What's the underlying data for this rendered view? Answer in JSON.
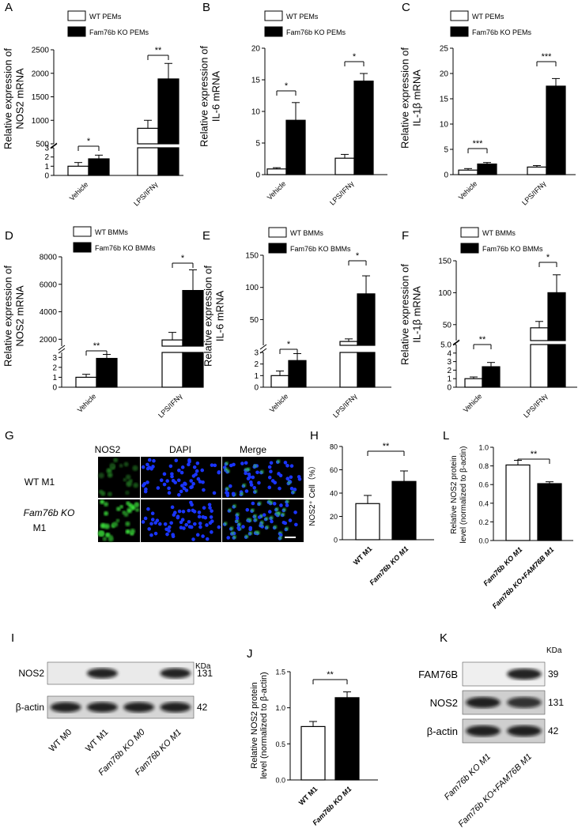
{
  "panel_letters": [
    "A",
    "B",
    "C",
    "D",
    "E",
    "F",
    "G",
    "H",
    "L",
    "I",
    "J",
    "K"
  ],
  "microscopy": {
    "columns": [
      "NOS2",
      "DAPI",
      "Merge"
    ],
    "row_labels": [
      "WT M1",
      "Fam76b KO",
      "M1"
    ]
  },
  "western_I": {
    "kda_label": "KDa",
    "rows": [
      {
        "name": "NOS2",
        "kda": "131",
        "bands": [
          0,
          1,
          0,
          1
        ]
      },
      {
        "name": "β-actin",
        "kda": "42",
        "bands": [
          1,
          1,
          1,
          1
        ]
      }
    ],
    "lanes": [
      "WT M0",
      "WT M1",
      "Fam76b KO M0",
      "Fam76b KO M1"
    ]
  },
  "western_K": {
    "kda_label": "KDa",
    "rows": [
      {
        "name": "FAM76B",
        "kda": "39",
        "bands": [
          0,
          1
        ]
      },
      {
        "name": "NOS2",
        "kda": "131",
        "bands": [
          1,
          0.8
        ]
      },
      {
        "name": "β-actin",
        "kda": "42",
        "bands": [
          1,
          1
        ]
      }
    ],
    "lanes": [
      "Fam76b KO M1",
      "Fam76b KO+FAM76B M1"
    ]
  },
  "chart_data": [
    {
      "panel": "A",
      "type": "bar",
      "legend": [
        "WT PEMs",
        "Fam76b KO PEMs"
      ],
      "ylabel_lines": [
        "Relative expression of",
        "NOS2 mRNA"
      ],
      "categories": [
        "Vehicle",
        "LPS/IFNγ"
      ],
      "series": [
        {
          "name": "WT PEMs",
          "values": [
            1.0,
            830
          ],
          "errors": [
            0.4,
            170
          ]
        },
        {
          "name": "Fam76b KO PEMs",
          "values": [
            1.8,
            1880
          ],
          "errors": [
            0.4,
            330
          ]
        }
      ],
      "y_break": {
        "lower": [
          0,
          3
        ],
        "upper": [
          500,
          2500
        ]
      },
      "yticks_lower": [
        "0",
        "1",
        "2",
        "3"
      ],
      "yticks_upper": [
        "500",
        "1000",
        "1500",
        "2000",
        "2500"
      ],
      "significance": [
        "*",
        "**"
      ]
    },
    {
      "panel": "B",
      "type": "bar",
      "legend": [
        "WT PEMs",
        "Fam76b KO  PEMs"
      ],
      "ylabel_lines": [
        "Relative expression of",
        "IL-6 mRNA"
      ],
      "categories": [
        "Vehicle",
        "LPS/IFNγ"
      ],
      "series": [
        {
          "name": "WT PEMs",
          "values": [
            0.9,
            2.6
          ],
          "errors": [
            0.2,
            0.6
          ]
        },
        {
          "name": "Fam76b KO  PEMs",
          "values": [
            8.6,
            14.8
          ],
          "errors": [
            2.8,
            1.2
          ]
        }
      ],
      "ylim": [
        0,
        20
      ],
      "yticks": [
        "0",
        "5",
        "10",
        "15",
        "20"
      ],
      "significance": [
        "*",
        "*"
      ]
    },
    {
      "panel": "C",
      "type": "bar",
      "legend": [
        "WT PEMs",
        "Fam76b KO PEMs"
      ],
      "ylabel_lines": [
        "Relative expression of",
        "IL-1β mRNA"
      ],
      "categories": [
        "Vehicle",
        "LPS/IFNγ"
      ],
      "series": [
        {
          "name": "WT PEMs",
          "values": [
            0.9,
            1.5
          ],
          "errors": [
            0.3,
            0.3
          ]
        },
        {
          "name": "Fam76b KO PEMs",
          "values": [
            2.1,
            17.5
          ],
          "errors": [
            0.3,
            1.5
          ]
        }
      ],
      "ylim": [
        0,
        25
      ],
      "yticks": [
        "0",
        "5",
        "10",
        "15",
        "20",
        "25"
      ],
      "significance": [
        "***",
        "***"
      ]
    },
    {
      "panel": "D",
      "type": "bar",
      "legend": [
        "WT BMMs",
        "Fam76b KO BMMs"
      ],
      "ylabel_lines": [
        "Relative expression of",
        "NOS2 mRNA"
      ],
      "categories": [
        "Vehicle",
        "LPS/IFNγ"
      ],
      "series": [
        {
          "name": "WT BMMs",
          "values": [
            1.0,
            1950
          ],
          "errors": [
            0.3,
            550
          ]
        },
        {
          "name": "Fam76b KO BMMs",
          "values": [
            2.9,
            5550
          ],
          "errors": [
            0.4,
            1500
          ]
        }
      ],
      "y_break": {
        "lower": [
          0,
          3.5
        ],
        "upper": [
          1500,
          8000
        ]
      },
      "yticks_lower": [
        "0",
        "1",
        "2",
        "3"
      ],
      "yticks_upper": [
        "2000",
        "4000",
        "6000",
        "8000"
      ],
      "significance": [
        "**",
        "*"
      ]
    },
    {
      "panel": "E",
      "type": "bar",
      "legend": [
        "WT BMMs",
        "Fam76b KO BMMs"
      ],
      "ylabel_lines": [
        "Relative expression of",
        "IL-6 mRNA"
      ],
      "categories": [
        "Vehicle",
        "LPS/IFNγ"
      ],
      "series": [
        {
          "name": "WT BMMs",
          "values": [
            1.0,
            16
          ],
          "errors": [
            0.4,
            4
          ]
        },
        {
          "name": "Fam76b KO BMMs",
          "values": [
            2.3,
            90
          ],
          "errors": [
            0.6,
            28
          ]
        }
      ],
      "y_break": {
        "lower": [
          0,
          3
        ],
        "upper": [
          10,
          150
        ]
      },
      "yticks_lower": [
        "0",
        "1",
        "2",
        "3"
      ],
      "yticks_upper": [
        "50",
        "100",
        "150"
      ],
      "significance": [
        "*",
        "*"
      ]
    },
    {
      "panel": "F",
      "type": "bar",
      "legend": [
        "WT BMMs",
        "Fam76b KO BMMs"
      ],
      "ylabel_lines": [
        "Relative expression of",
        "IL-1β mRNA"
      ],
      "categories": [
        "Vehicle",
        "LPS/IFNγ"
      ],
      "series": [
        {
          "name": "WT BMMs",
          "values": [
            1.0,
            45
          ],
          "errors": [
            0.2,
            10
          ]
        },
        {
          "name": "Fam76b KO BMMs",
          "values": [
            2.4,
            100
          ],
          "errors": [
            0.5,
            28
          ]
        }
      ],
      "y_break": {
        "lower": [
          0,
          5
        ],
        "upper": [
          25,
          150
        ]
      },
      "yticks_lower": [
        "0",
        "1",
        "2",
        "3",
        "4",
        "5.0"
      ],
      "yticks_upper": [
        "50",
        "100",
        "150"
      ],
      "significance": [
        "**",
        "*"
      ]
    },
    {
      "panel": "H",
      "type": "bar",
      "ylabel_lines": [
        "NOS2⁺ Cell（%）"
      ],
      "categories": [
        "WT M1",
        "Fam76b KO M1"
      ],
      "values": [
        31,
        50
      ],
      "errors": [
        7,
        9
      ],
      "ylim": [
        0,
        80
      ],
      "yticks": [
        "0",
        "20",
        "40",
        "60",
        "80"
      ],
      "significance": [
        "**"
      ]
    },
    {
      "panel": "L",
      "type": "bar",
      "ylabel_lines": [
        "Relative NOS2 protein",
        "level (normalized to β-actin)"
      ],
      "categories": [
        "Fam76b KO M1",
        "Fam76b KO+FAM76B M1"
      ],
      "values": [
        0.81,
        0.61
      ],
      "errors": [
        0.05,
        0.02
      ],
      "ylim": [
        0,
        1.0
      ],
      "yticks": [
        "0.0",
        "0.2",
        "0.4",
        "0.6",
        "0.8",
        "1.0"
      ],
      "significance": [
        "**"
      ]
    },
    {
      "panel": "J",
      "type": "bar",
      "ylabel_lines": [
        "Relative NOS2 protein",
        "level (normalized to β-actin)"
      ],
      "categories": [
        "WT M1",
        "Fam76b KO M1"
      ],
      "values": [
        0.74,
        1.14
      ],
      "errors": [
        0.07,
        0.08
      ],
      "ylim": [
        0,
        1.5
      ],
      "yticks": [
        "0.0",
        "0.5",
        "1.0",
        "1.5"
      ],
      "significance": [
        "**"
      ]
    }
  ]
}
